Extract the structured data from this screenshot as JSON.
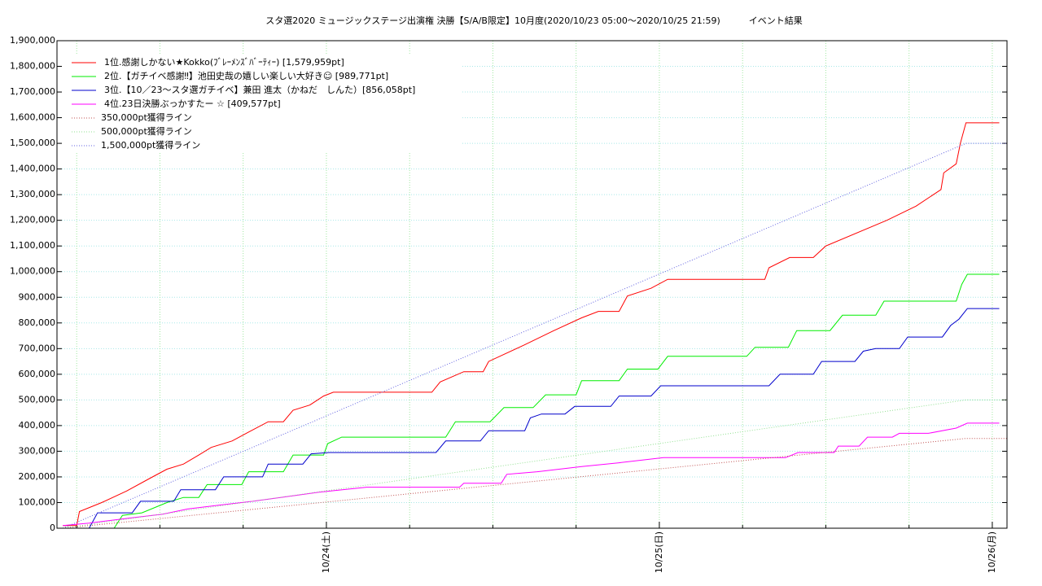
{
  "chart_data": {
    "type": "line",
    "title": "スタ選2020 ミュージックステージ出演権 決勝【S/A/B限定】10月度(2020/10/23 05:00〜2020/10/25 21:59)          イベント結果",
    "xlim": [
      4.58,
      73.06
    ],
    "xticks": [
      {
        "value": 24,
        "label": "10/24(土)"
      },
      {
        "value": 48,
        "label": "10/25(日)"
      },
      {
        "value": 72,
        "label": "10/26(月)"
      }
    ],
    "xminorticks": [
      6,
      12,
      18,
      30,
      36,
      42,
      54,
      60,
      66
    ],
    "ylim": [
      0,
      1900000
    ],
    "yticks": [
      0,
      {
        "value": 100000,
        "label": "100,000"
      },
      {
        "value": 200000,
        "label": "200,000"
      },
      {
        "value": 300000,
        "label": "300,000"
      },
      {
        "value": 400000,
        "label": "400,000"
      },
      {
        "value": 500000,
        "label": "500,000"
      },
      {
        "value": 600000,
        "label": "600,000"
      },
      {
        "value": 700000,
        "label": "700,000"
      },
      {
        "value": 800000,
        "label": "800,000"
      },
      {
        "value": 900000,
        "label": "900,000"
      },
      {
        "value": 1000000,
        "label": "1,000,000"
      },
      {
        "value": 1100000,
        "label": "1,100,000"
      },
      {
        "value": 1200000,
        "label": "1,200,000"
      },
      {
        "value": 1300000,
        "label": "1,300,000"
      },
      {
        "value": 1400000,
        "label": "1,400,000"
      },
      {
        "value": 1500000,
        "label": "1,500,000"
      },
      {
        "value": 1600000,
        "label": "1,600,000"
      },
      {
        "value": 1700000,
        "label": "1,700,000"
      },
      {
        "value": 1800000,
        "label": "1,800,000"
      },
      {
        "value": 1900000,
        "label": "1,900,000"
      }
    ],
    "grid": true,
    "legend": "upper left",
    "series": [
      {
        "name": "1位.感謝しかない★Kokko(ﾌﾞﾚｰﾒﾝｽﾞﾊﾞｰﾃｨｰ) [1,579,959pt]",
        "color": "#ff0000",
        "dash": false,
        "x": [
          5,
          6,
          6.2,
          7.8,
          9.6,
          11.3,
          12.5,
          13.7,
          14.8,
          15.7,
          17.2,
          18.4,
          19.8,
          20.9,
          21.6,
          22.8,
          23.8,
          24.5,
          31.6,
          32.2,
          33.9,
          35.3,
          35.7,
          38.3,
          40.4,
          42.4,
          43.6,
          45.1,
          45.7,
          47.4,
          48.6,
          55.6,
          55.9,
          57.4,
          59.1,
          60,
          64.4,
          66.5,
          68.3,
          68.5,
          69.4,
          69.7,
          70.1,
          72.5
        ],
        "values": [
          10000,
          10000,
          65000,
          100000,
          145000,
          195000,
          230000,
          250000,
          285000,
          315000,
          340000,
          375000,
          415000,
          415000,
          460000,
          480000,
          515000,
          530000,
          530000,
          570000,
          610000,
          610000,
          650000,
          715000,
          770000,
          820000,
          845000,
          845000,
          905000,
          935000,
          970000,
          970000,
          1015000,
          1055000,
          1055000,
          1100000,
          1200000,
          1255000,
          1320000,
          1385000,
          1420000,
          1500000,
          1579959,
          1579959
        ]
      },
      {
        "name": "2位.【ガチイベ感謝‼】池田史哉の嬉しい楽しい大好き☺ [989,771pt]",
        "color": "#00ee00",
        "dash": false,
        "x": [
          5,
          8.7,
          9.3,
          10.7,
          12.5,
          13.7,
          14.8,
          15.4,
          17.9,
          18.4,
          20.9,
          21.6,
          23.8,
          24.1,
          25.1,
          32.6,
          33.3,
          35.8,
          36.8,
          38.9,
          39.8,
          42,
          42.4,
          45.1,
          45.7,
          47.9,
          48.6,
          54.3,
          54.9,
          57.3,
          57.9,
          60.3,
          61.2,
          63.6,
          64.2,
          69.4,
          69.8,
          70.2,
          72.5
        ],
        "values": [
          0,
          0,
          50000,
          60000,
          100000,
          120000,
          120000,
          170000,
          170000,
          220000,
          220000,
          285000,
          285000,
          330000,
          355000,
          355000,
          415000,
          415000,
          470000,
          470000,
          520000,
          520000,
          575000,
          575000,
          620000,
          620000,
          670000,
          670000,
          705000,
          705000,
          770000,
          770000,
          830000,
          830000,
          885000,
          885000,
          950000,
          989771,
          989771
        ]
      },
      {
        "name": "3位.【10／23〜スタ選ガチイベ】兼田 進太（かねだ　しんた）[856,058pt]",
        "color": "#0000cc",
        "dash": false,
        "x": [
          5,
          6.9,
          7.5,
          10,
          10.6,
          13,
          13.5,
          16,
          16.6,
          19.4,
          19.8,
          22.3,
          22.9,
          24.2,
          31.9,
          32.6,
          35.1,
          35.7,
          38.3,
          38.7,
          39.5,
          41.2,
          41.9,
          44.5,
          45.1,
          47.4,
          48.1,
          55.9,
          56.7,
          59.1,
          59.7,
          62.1,
          62.7,
          63.6,
          65.3,
          65.9,
          68.4,
          69,
          69.6,
          70.2,
          72.5
        ],
        "values": [
          0,
          0,
          60000,
          60000,
          105000,
          105000,
          150000,
          150000,
          200000,
          200000,
          250000,
          250000,
          290000,
          295000,
          295000,
          340000,
          340000,
          380000,
          380000,
          430000,
          445000,
          445000,
          475000,
          475000,
          515000,
          515000,
          555000,
          555000,
          600000,
          600000,
          650000,
          650000,
          690000,
          700000,
          700000,
          745000,
          745000,
          790000,
          815000,
          856058,
          856058
        ]
      },
      {
        "name": "4位.23日決勝ぶっかすたー ☆ [409,577pt]",
        "color": "#ff00ff",
        "dash": false,
        "x": [
          5,
          6.9,
          9.9,
          12.2,
          14,
          16.3,
          18.7,
          20.7,
          23.4,
          26.9,
          33.6,
          33.9,
          36.6,
          37,
          39.2,
          42.4,
          45.1,
          48.3,
          57.1,
          58,
          60.6,
          60.9,
          62.4,
          63,
          64.8,
          65.3,
          67.4,
          69.4,
          70.2,
          72.5
        ],
        "values": [
          10000,
          20000,
          40000,
          55000,
          75000,
          90000,
          105000,
          120000,
          140000,
          160000,
          160000,
          175000,
          175000,
          210000,
          220000,
          240000,
          255000,
          275000,
          275000,
          295000,
          295000,
          320000,
          320000,
          355000,
          355000,
          370000,
          370000,
          390000,
          409577,
          409577
        ]
      },
      {
        "name": "350,000pt獲得ライン",
        "color": "#c05050",
        "dash": true,
        "x": [
          5,
          70.1,
          73.06
        ],
        "values": [
          0,
          350000,
          350000
        ]
      },
      {
        "name": "500,000pt獲得ライン",
        "color": "#90e090",
        "dash": true,
        "x": [
          5,
          70.1,
          73.06
        ],
        "values": [
          0,
          500000,
          500000
        ]
      },
      {
        "name": "1,500,000pt獲得ライン",
        "color": "#6060e0",
        "dash": true,
        "x": [
          5,
          70.1,
          73.06
        ],
        "values": [
          0,
          1500000,
          1500000
        ]
      }
    ]
  }
}
